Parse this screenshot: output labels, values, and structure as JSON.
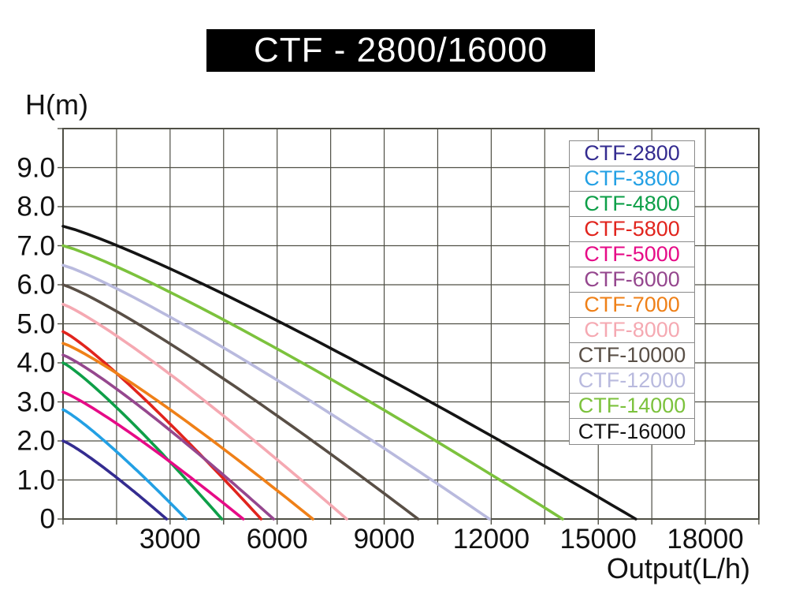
{
  "title_bar": {
    "text": "CTF - 2800/16000",
    "bg_color": "#000000",
    "text_color": "#ffffff"
  },
  "chart_data": {
    "type": "line",
    "title": "CTF - 2800/16000",
    "xlabel": "Output(L/h)",
    "ylabel": "H(m)",
    "xlim": [
      0,
      19500
    ],
    "ylim": [
      0,
      10
    ],
    "grid": {
      "on": true,
      "x_step": 1500,
      "y_step": 1,
      "color": "#4f4f45"
    },
    "x_ticks": {
      "values": [
        3000,
        6000,
        9000,
        12000,
        15000,
        18000
      ],
      "labels": [
        "3000",
        "6000",
        "9000",
        "12000",
        "15000",
        "18000"
      ]
    },
    "y_ticks": {
      "values": [
        9,
        8,
        7,
        6,
        5,
        4,
        3,
        2,
        1,
        0
      ],
      "labels": [
        "9.0",
        "8.0",
        "7.0",
        "6.0",
        "5.0",
        "4.0",
        "3.0",
        "2.0",
        "1.0",
        "0"
      ]
    },
    "curve_model": {
      "formula": "H = max_head_m * (1 - (Q/max_flow_lh)^p)",
      "p": 1.15
    },
    "series": [
      {
        "name": "CTF-2800",
        "color": "#342c90",
        "max_head_m": 2.0,
        "max_flow_lh": 2900,
        "points_head_vs_flow": [
          [
            0,
            2.0
          ],
          [
            1450,
            0.97
          ],
          [
            2900,
            0
          ]
        ]
      },
      {
        "name": "CTF-3800",
        "color": "#23a0e4",
        "max_head_m": 2.8,
        "max_flow_lh": 3450,
        "points_head_vs_flow": [
          [
            0,
            2.8
          ],
          [
            1725,
            1.35
          ],
          [
            3450,
            0
          ]
        ]
      },
      {
        "name": "CTF-4800",
        "color": "#0e9f48",
        "max_head_m": 4.0,
        "max_flow_lh": 4450,
        "points_head_vs_flow": [
          [
            0,
            4.0
          ],
          [
            2225,
            1.9
          ],
          [
            4450,
            0
          ]
        ]
      },
      {
        "name": "CTF-5800",
        "color": "#e1241d",
        "max_head_m": 4.8,
        "max_flow_lh": 5550,
        "points_head_vs_flow": [
          [
            0,
            4.8
          ],
          [
            2775,
            2.3
          ],
          [
            5550,
            0
          ]
        ]
      },
      {
        "name": "CTF-5000",
        "color": "#e60b87",
        "max_head_m": 3.25,
        "max_flow_lh": 5050,
        "points_head_vs_flow": [
          [
            0,
            3.25
          ],
          [
            2525,
            1.6
          ],
          [
            5050,
            0
          ]
        ]
      },
      {
        "name": "CTF-6000",
        "color": "#95478e",
        "max_head_m": 4.2,
        "max_flow_lh": 5900,
        "points_head_vs_flow": [
          [
            0,
            4.2
          ],
          [
            2950,
            2.0
          ],
          [
            5900,
            0
          ]
        ]
      },
      {
        "name": "CTF-7000",
        "color": "#ef8018",
        "max_head_m": 4.5,
        "max_flow_lh": 7000,
        "points_head_vs_flow": [
          [
            0,
            4.5
          ],
          [
            3500,
            2.2
          ],
          [
            7000,
            0
          ]
        ]
      },
      {
        "name": "CTF-8000",
        "color": "#f5a9b2",
        "max_head_m": 5.5,
        "max_flow_lh": 7950,
        "points_head_vs_flow": [
          [
            0,
            5.5
          ],
          [
            4000,
            2.7
          ],
          [
            7950,
            0
          ]
        ]
      },
      {
        "name": "CTF-10000",
        "color": "#594f46",
        "max_head_m": 6.0,
        "max_flow_lh": 9950,
        "points_head_vs_flow": [
          [
            0,
            6.0
          ],
          [
            5000,
            2.9
          ],
          [
            7500,
            1.8
          ],
          [
            9950,
            0
          ]
        ]
      },
      {
        "name": "CTF-12000",
        "color": "#b9bade",
        "max_head_m": 6.5,
        "max_flow_lh": 11950,
        "points_head_vs_flow": [
          [
            0,
            6.5
          ],
          [
            6000,
            3.2
          ],
          [
            9000,
            1.8
          ],
          [
            11950,
            0
          ]
        ]
      },
      {
        "name": "CTF-14000",
        "color": "#7cc23d",
        "max_head_m": 7.0,
        "max_flow_lh": 14000,
        "points_head_vs_flow": [
          [
            0,
            7.0
          ],
          [
            6000,
            4.25
          ],
          [
            10500,
            2.0
          ],
          [
            14000,
            0
          ]
        ]
      },
      {
        "name": "CTF-16000",
        "color": "#141414",
        "max_head_m": 7.5,
        "max_flow_lh": 16050,
        "points_head_vs_flow": [
          [
            0,
            7.5
          ],
          [
            6000,
            5.05
          ],
          [
            10500,
            3.0
          ],
          [
            16050,
            0
          ]
        ]
      }
    ],
    "legend": {
      "position": "top-right",
      "border_color": "#8a8a8a",
      "bg_color": "#ffffff"
    }
  }
}
